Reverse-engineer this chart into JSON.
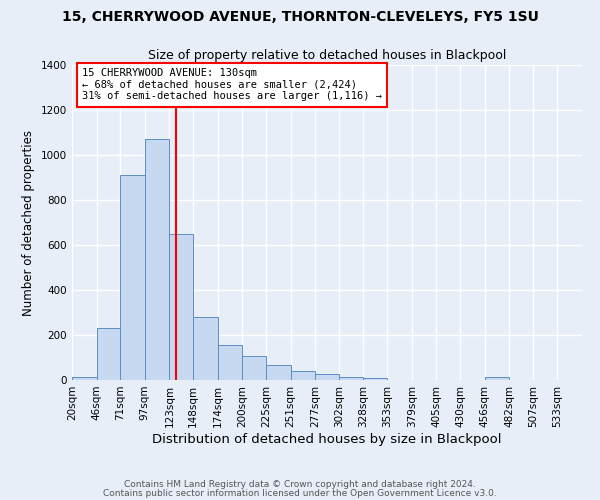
{
  "title1": "15, CHERRYWOOD AVENUE, THORNTON-CLEVELEYS, FY5 1SU",
  "title2": "Size of property relative to detached houses in Blackpool",
  "xlabel": "Distribution of detached houses by size in Blackpool",
  "ylabel": "Number of detached properties",
  "all_labels": [
    "20sqm",
    "46sqm",
    "71sqm",
    "97sqm",
    "123sqm",
    "148sqm",
    "174sqm",
    "200sqm",
    "225sqm",
    "251sqm",
    "277sqm",
    "302sqm",
    "328sqm",
    "353sqm",
    "379sqm",
    "405sqm",
    "430sqm",
    "456sqm",
    "482sqm",
    "507sqm",
    "533sqm"
  ],
  "bar_heights": [
    15,
    230,
    910,
    1070,
    650,
    280,
    155,
    105,
    65,
    40,
    25,
    15,
    10,
    0,
    0,
    0,
    0,
    15,
    0,
    0,
    0
  ],
  "bin_edges": [
    20,
    46,
    71,
    97,
    123,
    148,
    174,
    200,
    225,
    251,
    277,
    302,
    328,
    353,
    379,
    405,
    430,
    456,
    482,
    507,
    533,
    559
  ],
  "bar_color": "#c6d9f0",
  "bar_edge_color": "#5b8ec6",
  "vline_x": 130,
  "vline_color": "red",
  "ylim": [
    0,
    1400
  ],
  "annotation_title": "15 CHERRYWOOD AVENUE: 130sqm",
  "annotation_line1": "← 68% of detached houses are smaller (2,424)",
  "annotation_line2": "31% of semi-detached houses are larger (1,116) →",
  "annotation_box_color": "#ffffff",
  "annotation_box_edge": "red",
  "footer1": "Contains HM Land Registry data © Crown copyright and database right 2024.",
  "footer2": "Contains public sector information licensed under the Open Government Licence v3.0.",
  "bg_color": "#e8eef8",
  "grid_color": "#ffffff",
  "title1_fontsize": 10,
  "title2_fontsize": 9,
  "xlabel_fontsize": 9.5,
  "ylabel_fontsize": 8.5,
  "tick_fontsize": 7.5,
  "annotation_fontsize": 7.5,
  "footer_fontsize": 6.5
}
